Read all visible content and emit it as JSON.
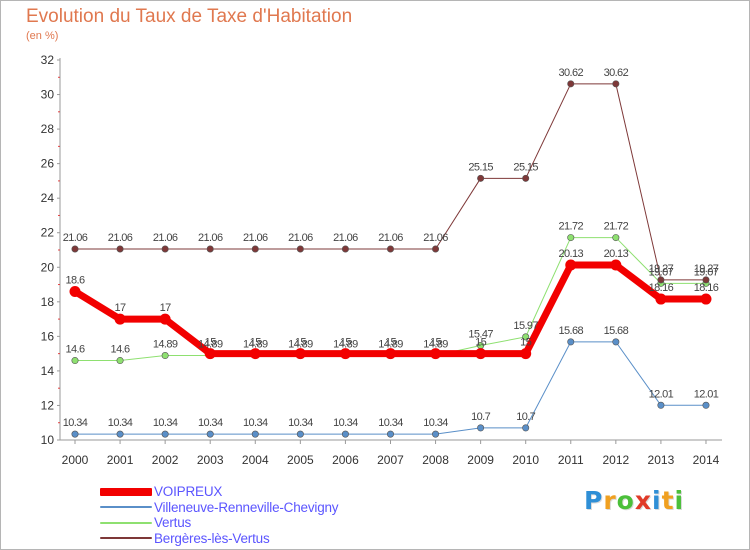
{
  "chart_data": {
    "type": "line",
    "title": "Evolution du Taux de Taxe d'Habitation",
    "unit_label": "(en %)",
    "xlabel": "",
    "ylabel": "",
    "categories": [
      "2000",
      "2001",
      "2002",
      "2003",
      "2004",
      "2005",
      "2006",
      "2007",
      "2008",
      "2009",
      "2010",
      "2011",
      "2012",
      "2013",
      "2014"
    ],
    "ylim": [
      10,
      32
    ],
    "yticks": [
      10,
      12,
      14,
      16,
      18,
      20,
      22,
      24,
      26,
      28,
      30,
      32
    ],
    "grid": false,
    "legend_position": "bottom-left",
    "series": [
      {
        "name": "Villeneuve-Renneville-Chevigny",
        "color": "#5a8fc8",
        "width": 1,
        "values": [
          10.34,
          10.34,
          10.34,
          10.34,
          10.34,
          10.34,
          10.34,
          10.34,
          10.34,
          10.7,
          10.7,
          15.68,
          15.68,
          12.01,
          12.01
        ],
        "labels": [
          "10.34",
          "10.34",
          "10.34",
          "10.34",
          "10.34",
          "10.34",
          "10.34",
          "10.34",
          "10.34",
          "10.7",
          "10.7",
          "15.68",
          "15.68",
          "12.01",
          "12.01"
        ]
      },
      {
        "name": "Vertus",
        "color": "#8ee070",
        "width": 1,
        "values": [
          14.6,
          14.6,
          14.89,
          14.89,
          14.89,
          14.89,
          14.89,
          14.89,
          14.89,
          15.47,
          15.97,
          21.72,
          21.72,
          19.07,
          19.07
        ],
        "labels": [
          "14.6",
          "14.6",
          "14.89",
          "14.89",
          "14.89",
          "14.89",
          "14.89",
          "14.89",
          "14.89",
          "15.47",
          "15.97",
          "21.72",
          "21.72",
          "19.07",
          "19.07"
        ]
      },
      {
        "name": "Bergères-lès-Vertus",
        "color": "#7e3838",
        "width": 1,
        "values": [
          21.06,
          21.06,
          21.06,
          21.06,
          21.06,
          21.06,
          21.06,
          21.06,
          21.06,
          25.15,
          25.15,
          30.62,
          30.62,
          19.27,
          19.27
        ],
        "labels": [
          "21.06",
          "21.06",
          "21.06",
          "21.06",
          "21.06",
          "21.06",
          "21.06",
          "21.06",
          "21.06",
          "25.15",
          "25.15",
          "30.62",
          "30.62",
          "19.27",
          "19.27"
        ]
      },
      {
        "name": "VOIPREUX",
        "color": "#f20000",
        "width": 7,
        "values": [
          18.6,
          17,
          17,
          15,
          15,
          15,
          15,
          15,
          15,
          15,
          15,
          20.13,
          20.13,
          18.16,
          18.16
        ],
        "labels": [
          "18.6",
          "17",
          "17",
          "15",
          "15",
          "15",
          "15",
          "15",
          "15",
          "15",
          "15",
          "20.13",
          "20.13",
          "18.16",
          "18.16"
        ]
      }
    ]
  },
  "legend": {
    "entries": [
      {
        "label": "VOIPREUX",
        "color": "#f20000"
      },
      {
        "label": "Villeneuve-Renneville-Chevigny",
        "color": "#5a8fc8"
      },
      {
        "label": "Vertus",
        "color": "#8ee070"
      },
      {
        "label": "Bergères-lès-Vertus",
        "color": "#7e3838"
      }
    ]
  },
  "logo": {
    "letters": [
      "P",
      "r",
      "o",
      "x",
      "i",
      "t",
      "i"
    ],
    "colors": [
      "#2f8fd6",
      "#f0a020",
      "#4bbf3a",
      "#e03a28",
      "#2f8fd6",
      "#f0a020",
      "#4bbf3a"
    ]
  }
}
